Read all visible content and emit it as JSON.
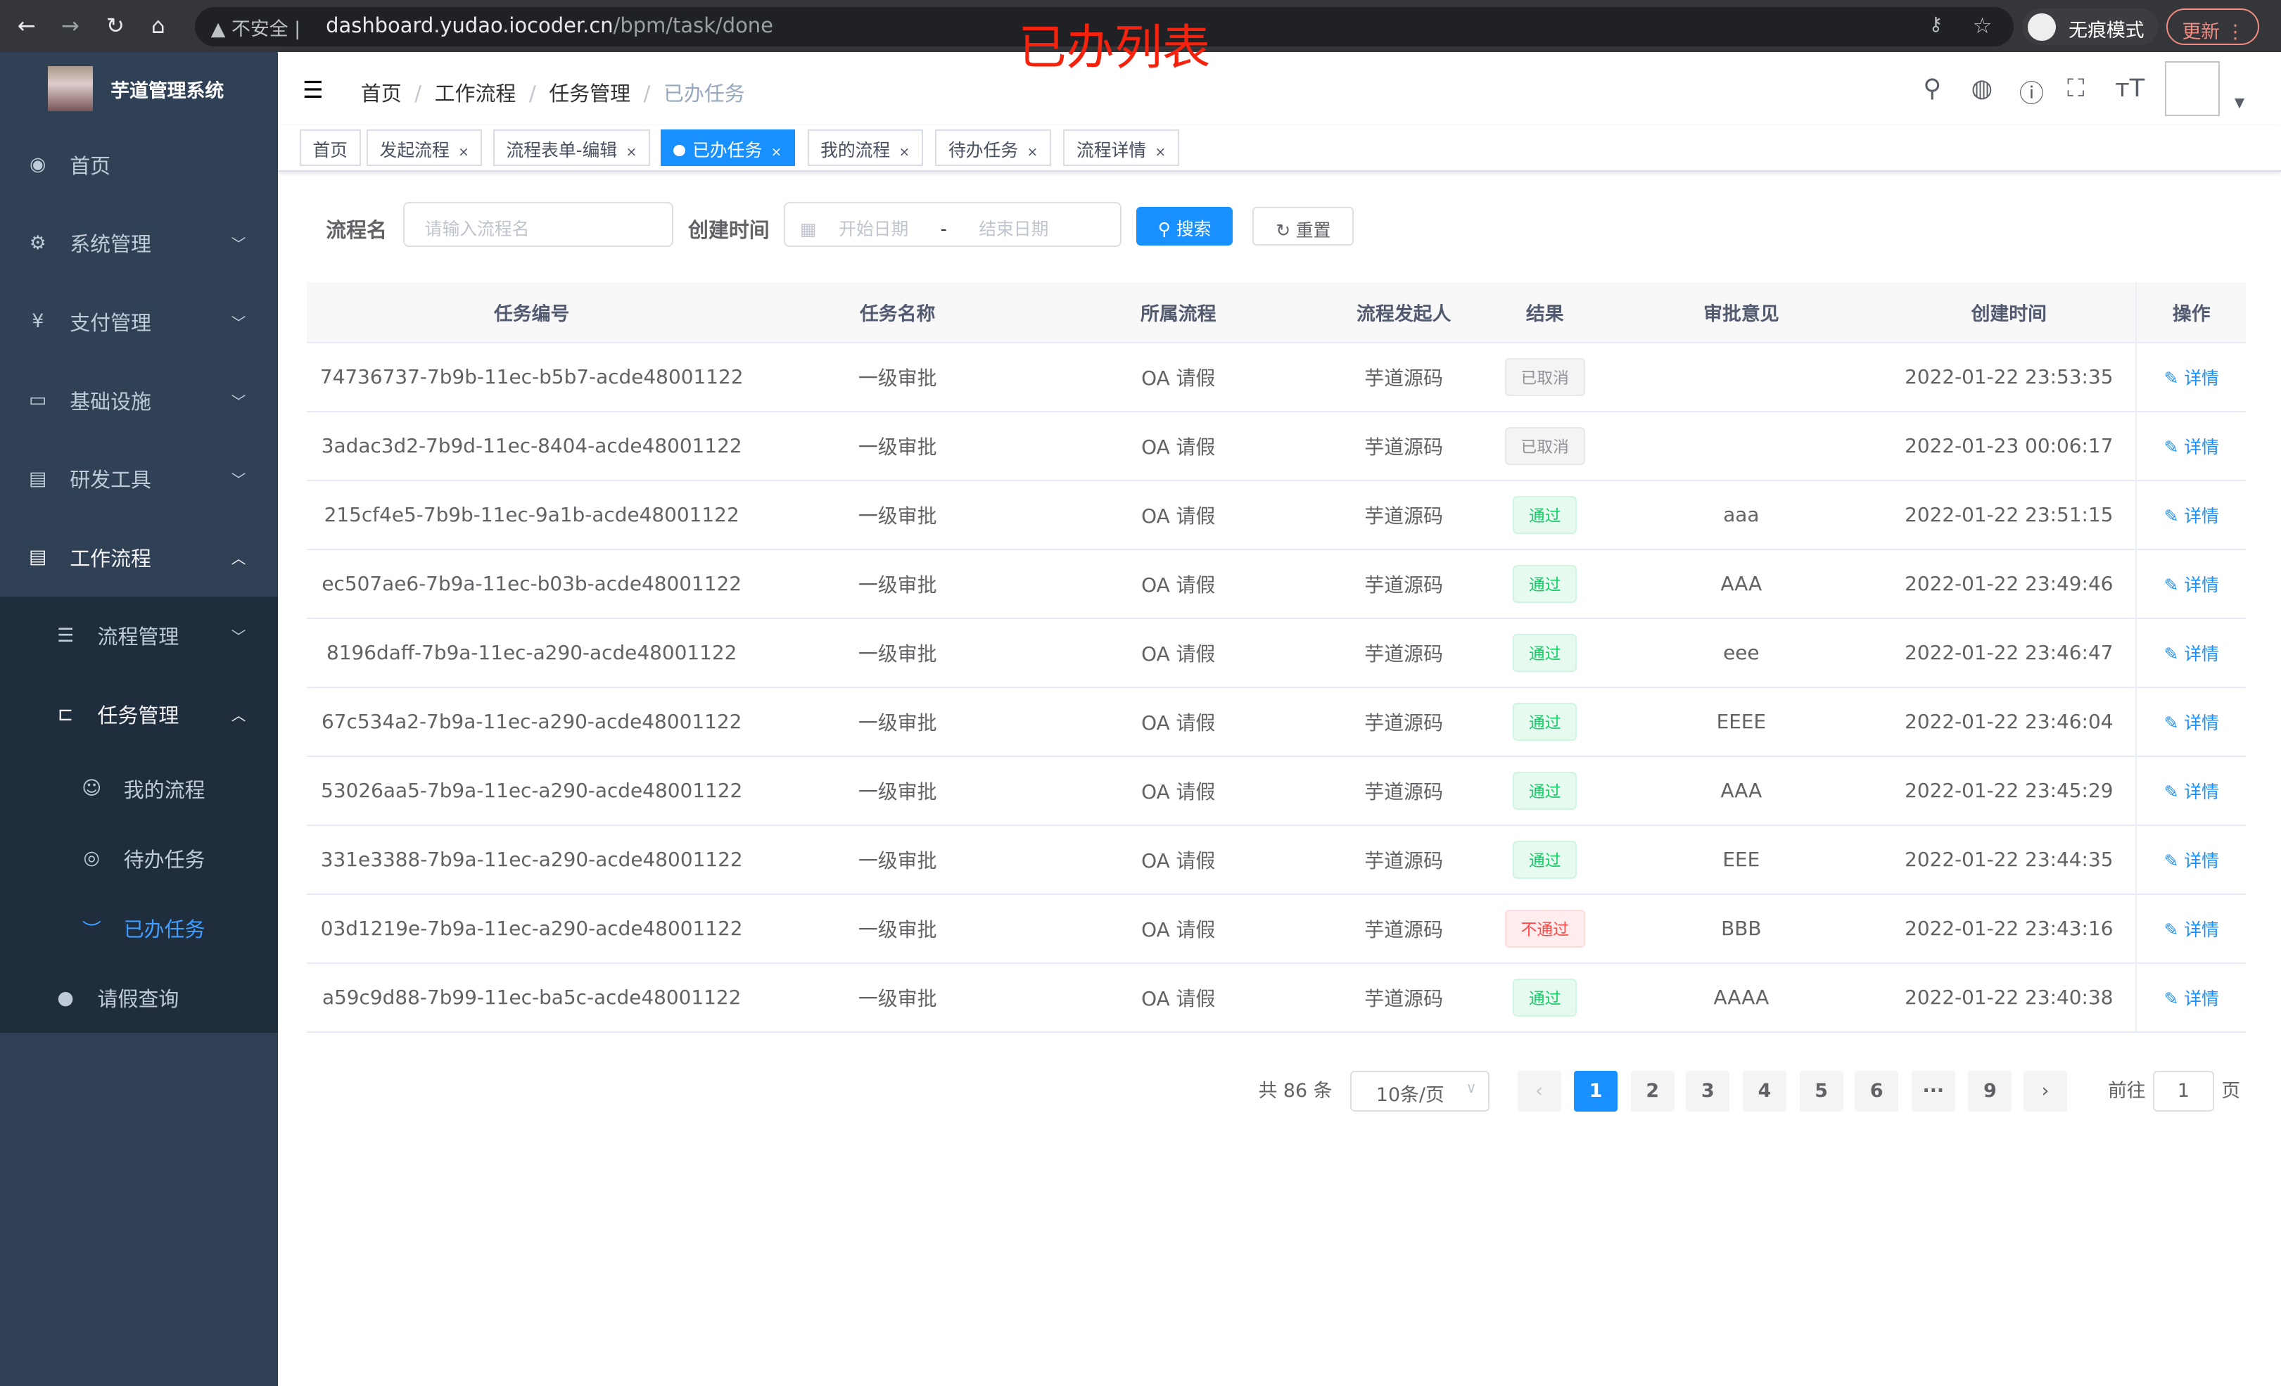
{
  "browser": {
    "insecure": "不安全",
    "url_host": "dashboard.yudao.iocoder.cn",
    "url_path": "/bpm/task/done",
    "incognito": "无痕模式",
    "update": "更新",
    "overlay_title": "已办列表"
  },
  "sidebar": {
    "title": "芋道管理系统",
    "items": [
      {
        "label": "首页",
        "icon": "dashboard-icon"
      },
      {
        "label": "系统管理",
        "icon": "gear-icon"
      },
      {
        "label": "支付管理",
        "icon": "yen-icon"
      },
      {
        "label": "基础设施",
        "icon": "monitor-icon"
      },
      {
        "label": "研发工具",
        "icon": "toolbox-icon"
      },
      {
        "label": "工作流程",
        "icon": "toolbox-icon"
      },
      {
        "label": "流程管理",
        "icon": "list-icon"
      },
      {
        "label": "任务管理",
        "icon": "tree-icon"
      },
      {
        "label": "我的流程",
        "icon": "chat-icon"
      },
      {
        "label": "待办任务",
        "icon": "eye-icon"
      },
      {
        "label": "已办任务",
        "icon": "eye-closed-icon"
      },
      {
        "label": "请假查询",
        "icon": "user-icon"
      }
    ],
    "active_color": "#409eff"
  },
  "breadcrumb": [
    "首页",
    "工作流程",
    "任务管理",
    "已办任务"
  ],
  "tags": [
    "首页",
    "发起流程",
    "流程表单-编辑",
    "已办任务",
    "我的流程",
    "待办任务",
    "流程详情"
  ],
  "search": {
    "name_label": "流程名",
    "name_placeholder": "请输入流程名",
    "time_label": "创建时间",
    "start_placeholder": "开始日期",
    "sep": "-",
    "end_placeholder": "结束日期",
    "search_btn": "搜索",
    "reset_btn": "重置"
  },
  "table": {
    "headers": [
      "任务编号",
      "任务名称",
      "所属流程",
      "流程发起人",
      "结果",
      "审批意见",
      "创建时间",
      "操作"
    ],
    "rows": [
      [
        "74736737-7b9b-11ec-b5b7-acde48001122",
        "一级审批",
        "OA 请假",
        "芋道源码",
        "已取消",
        "",
        "2022-01-22 23:53:35",
        "详情"
      ],
      [
        "3adac3d2-7b9d-11ec-8404-acde48001122",
        "一级审批",
        "OA 请假",
        "芋道源码",
        "已取消",
        "",
        "2022-01-23 00:06:17",
        "详情"
      ],
      [
        "215cf4e5-7b9b-11ec-9a1b-acde48001122",
        "一级审批",
        "OA 请假",
        "芋道源码",
        "通过",
        "aaa",
        "2022-01-22 23:51:15",
        "详情"
      ],
      [
        "ec507ae6-7b9a-11ec-b03b-acde48001122",
        "一级审批",
        "OA 请假",
        "芋道源码",
        "通过",
        "AAA",
        "2022-01-22 23:49:46",
        "详情"
      ],
      [
        "8196daff-7b9a-11ec-a290-acde48001122",
        "一级审批",
        "OA 请假",
        "芋道源码",
        "通过",
        "eee",
        "2022-01-22 23:46:47",
        "详情"
      ],
      [
        "67c534a2-7b9a-11ec-a290-acde48001122",
        "一级审批",
        "OA 请假",
        "芋道源码",
        "通过",
        "EEEE",
        "2022-01-22 23:46:04",
        "详情"
      ],
      [
        "53026aa5-7b9a-11ec-a290-acde48001122",
        "一级审批",
        "OA 请假",
        "芋道源码",
        "通过",
        "AAA",
        "2022-01-22 23:45:29",
        "详情"
      ],
      [
        "331e3388-7b9a-11ec-a290-acde48001122",
        "一级审批",
        "OA 请假",
        "芋道源码",
        "通过",
        "EEE",
        "2022-01-22 23:44:35",
        "详情"
      ],
      [
        "03d1219e-7b9a-11ec-a290-acde48001122",
        "一级审批",
        "OA 请假",
        "芋道源码",
        "不通过",
        "BBB",
        "2022-01-22 23:43:16",
        "详情"
      ],
      [
        "a59c9d88-7b99-11ec-ba5c-acde48001122",
        "一级审批",
        "OA 请假",
        "芋道源码",
        "通过",
        "AAAA",
        "2022-01-22 23:40:38",
        "详情"
      ]
    ]
  },
  "pagination": {
    "total": "共 86 条",
    "page_size": "10条/页",
    "pages": [
      "1",
      "2",
      "3",
      "4",
      "5",
      "6",
      "···",
      "9"
    ],
    "current": "1",
    "goto_label": "前往",
    "goto_value": "1",
    "page_suffix": "页"
  }
}
